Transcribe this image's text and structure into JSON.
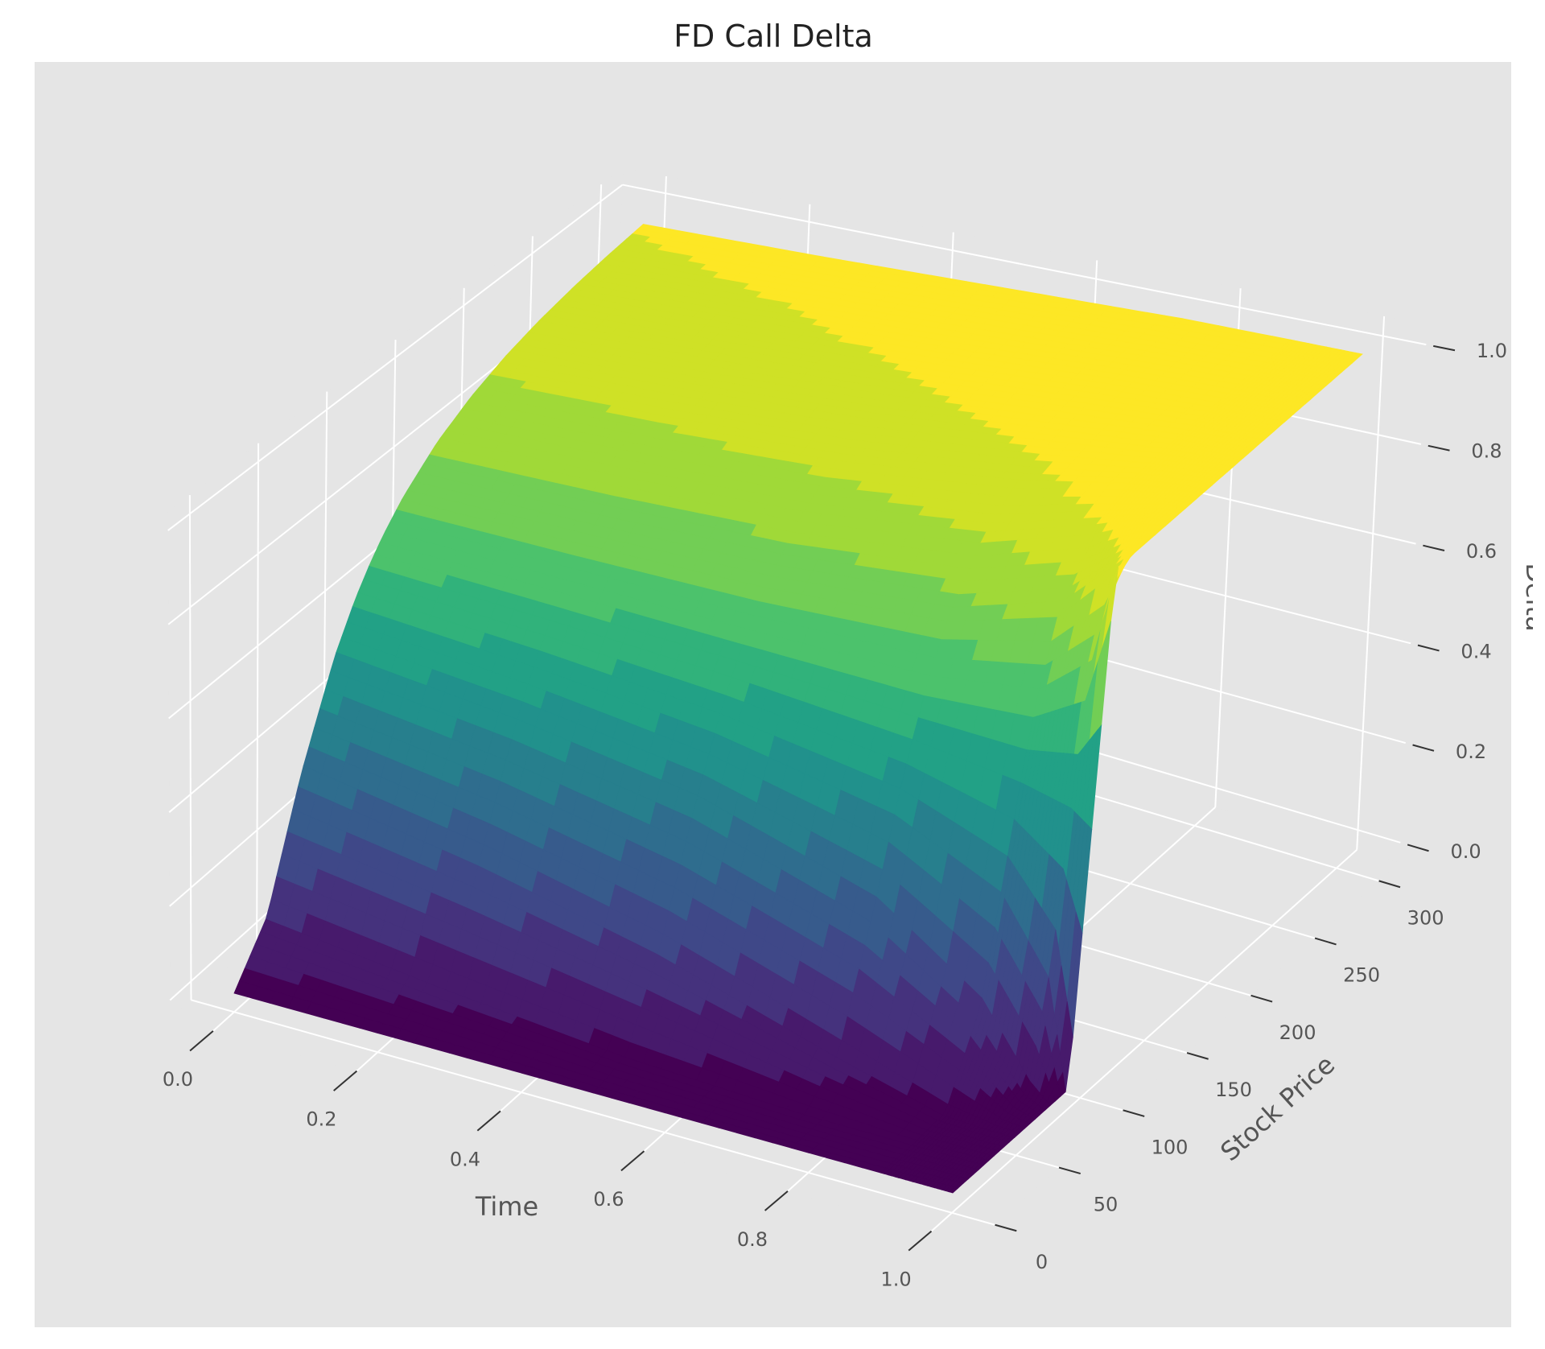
{
  "chart_data": {
    "type": "surface",
    "title": "FD Call Delta",
    "xlabel": "Time",
    "ylabel": "Stock Price",
    "zlabel": "Delta",
    "colormap": "viridis",
    "grid": true,
    "background": "#e5e5e5",
    "xlim": [
      0,
      1
    ],
    "ylim": [
      0,
      300
    ],
    "zlim": [
      0,
      1
    ],
    "x_ticks": [
      "0.0",
      "0.2",
      "0.4",
      "0.6",
      "0.8",
      "1.0"
    ],
    "y_ticks": [
      "0",
      "50",
      "100",
      "150",
      "200",
      "250",
      "300"
    ],
    "z_ticks": [
      "0.0",
      "0.2",
      "0.4",
      "0.6",
      "0.8",
      "1.0"
    ],
    "time": [
      0,
      0.25,
      0.5,
      0.75,
      0.9,
      0.97,
      1.0
    ],
    "stock_price": [
      0,
      25,
      50,
      75,
      90,
      100,
      110,
      125,
      150,
      175,
      200,
      225,
      250,
      275,
      300
    ],
    "delta": [
      [
        0,
        0.102,
        0.343,
        0.541,
        0.63,
        0.678,
        0.72,
        0.771,
        0.834,
        0.877,
        0.908,
        0.93,
        0.946,
        0.958,
        0.967
      ],
      [
        0,
        0.055,
        0.274,
        0.494,
        0.598,
        0.655,
        0.705,
        0.765,
        0.838,
        0.887,
        0.919,
        0.942,
        0.958,
        0.969,
        0.976
      ],
      [
        0,
        0.017,
        0.185,
        0.428,
        0.556,
        0.628,
        0.69,
        0.765,
        0.851,
        0.906,
        0.94,
        0.961,
        0.974,
        0.983,
        0.988
      ],
      [
        0,
        0.001,
        0.067,
        0.312,
        0.488,
        0.591,
        0.68,
        0.785,
        0.893,
        0.949,
        0.975,
        0.988,
        0.994,
        0.997,
        0.999
      ],
      [
        0,
        0,
        0.005,
        0.161,
        0.394,
        0.558,
        0.7,
        0.848,
        0.96,
        0.991,
        0.998,
        1,
        1,
        1,
        1
      ],
      [
        0,
        0,
        0,
        0.023,
        0.248,
        0.532,
        0.779,
        0.954,
        0.999,
        1,
        1,
        1,
        1,
        1,
        1
      ],
      [
        0,
        0,
        0,
        0,
        0,
        0.5,
        1,
        1,
        1,
        1,
        1,
        1,
        1,
        1,
        1
      ]
    ]
  }
}
